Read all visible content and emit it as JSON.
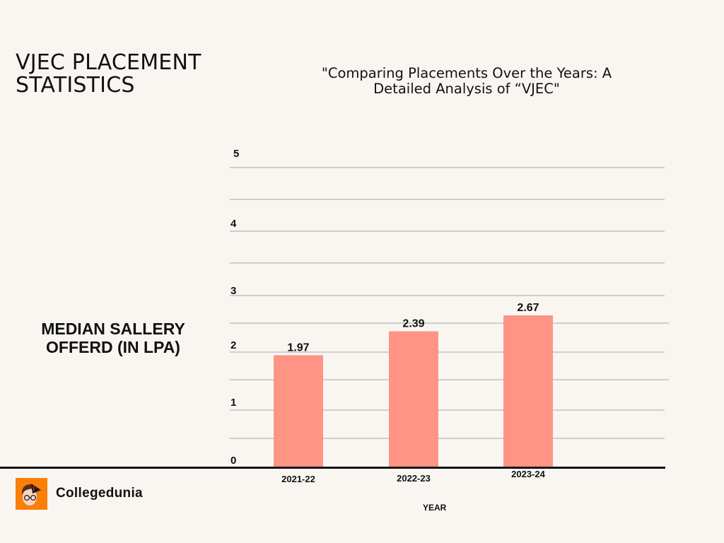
{
  "title": "VJEC PLACEMENT STATISTICS",
  "subtitle": "\"Comparing Placements Over the Years: A Detailed Analysis of “VJEC\"",
  "brand": {
    "name": "Collegedunia",
    "logo_icon": "collegedunia-mascot-icon"
  },
  "chart_data": {
    "type": "bar",
    "title": "VJEC PLACEMENT STATISTICS",
    "subtitle": "\"Comparing Placements Over the Years: A Detailed Analysis of “VJEC\"",
    "xlabel": "YEAR",
    "ylabel": "MEDIAN SALLERY OFFERD (IN LPA)",
    "categories": [
      "2021-22",
      "2022-23",
      "2023-24"
    ],
    "values": [
      1.97,
      2.39,
      2.67
    ],
    "data_labels": [
      "1.97",
      "2.39",
      "2.67"
    ],
    "yticks": [
      "0",
      "1",
      "2",
      "3",
      "4",
      "5"
    ],
    "ylim": [
      0,
      5
    ],
    "grid": true,
    "bar_color": "#ff9485",
    "grid_color": "#b9b6b2",
    "axis_color": "#111111"
  }
}
